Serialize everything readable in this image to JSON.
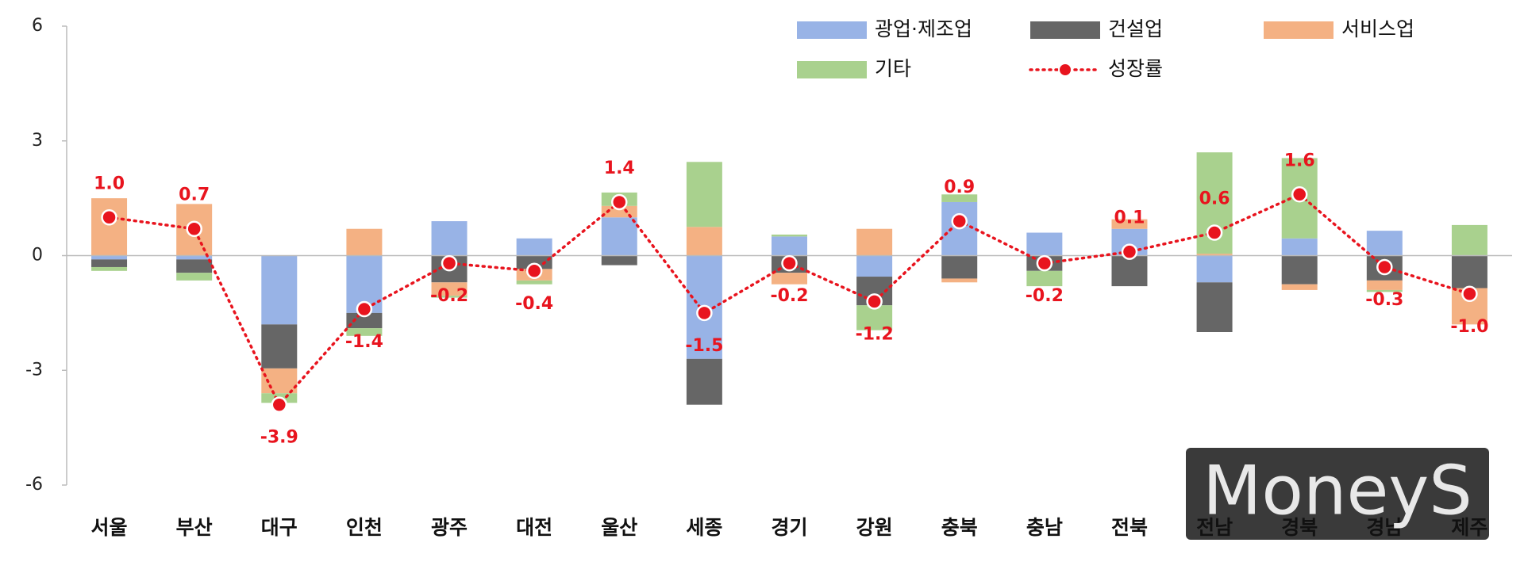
{
  "chart_data": {
    "type": "bar",
    "stacked": true,
    "categories": [
      "서울",
      "부산",
      "대구",
      "인천",
      "광주",
      "대전",
      "울산",
      "세종",
      "경기",
      "강원",
      "충북",
      "충남",
      "전북",
      "전남",
      "경북",
      "경남",
      "제주"
    ],
    "series": [
      {
        "name": "광업·제조업",
        "type": "bar",
        "color": "#98b3e6",
        "values": [
          -0.1,
          -0.1,
          -1.8,
          -1.5,
          0.9,
          0.45,
          1.0,
          -2.7,
          0.5,
          -0.55,
          1.4,
          0.6,
          0.7,
          -0.7,
          0.45,
          0.65,
          0
        ]
      },
      {
        "name": "건설업",
        "type": "bar",
        "color": "#666666",
        "values": [
          -0.2,
          -0.35,
          -1.15,
          -0.4,
          -0.7,
          -0.35,
          -0.25,
          -1.2,
          -0.45,
          -0.75,
          -0.6,
          -0.4,
          -0.8,
          -1.3,
          -0.75,
          -0.65,
          -0.85
        ]
      },
      {
        "name": "서비스업",
        "type": "bar",
        "color": "#f4b183",
        "values": [
          1.5,
          1.35,
          -0.65,
          0.7,
          -0.35,
          -0.3,
          0.3,
          0.75,
          -0.3,
          0.7,
          -0.1,
          0,
          0.25,
          0.05,
          -0.15,
          -0.25,
          -0.95
        ]
      },
      {
        "name": "기타",
        "type": "bar",
        "color": "#a9d18e",
        "values": [
          -0.1,
          -0.2,
          -0.25,
          -0.2,
          -0.05,
          -0.1,
          0.35,
          1.7,
          0.05,
          -0.65,
          0.2,
          -0.4,
          0,
          2.65,
          2.1,
          -0.05,
          0.8
        ]
      },
      {
        "name": "성장률",
        "type": "line",
        "color": "#e8141e",
        "values": [
          1.0,
          0.7,
          -3.9,
          -1.4,
          -0.2,
          -0.4,
          1.4,
          -1.5,
          -0.2,
          -1.2,
          0.9,
          -0.2,
          0.1,
          0.6,
          1.6,
          -0.3,
          -1.0
        ],
        "value_labels": [
          "1.0",
          "0.7",
          "-3.9",
          "-1.4",
          "-0.2",
          "-0.4",
          "1.4",
          "-1.5",
          "-0.2",
          "-1.2",
          "0.9",
          "-0.2",
          "0.1",
          "0.6",
          "1.6",
          "-0.3",
          "-1.0"
        ]
      }
    ],
    "ylim": [
      -6,
      6
    ],
    "yticks": [
      6,
      3,
      0,
      -3,
      -6
    ],
    "grid": false,
    "watermark": "MoneyS"
  }
}
